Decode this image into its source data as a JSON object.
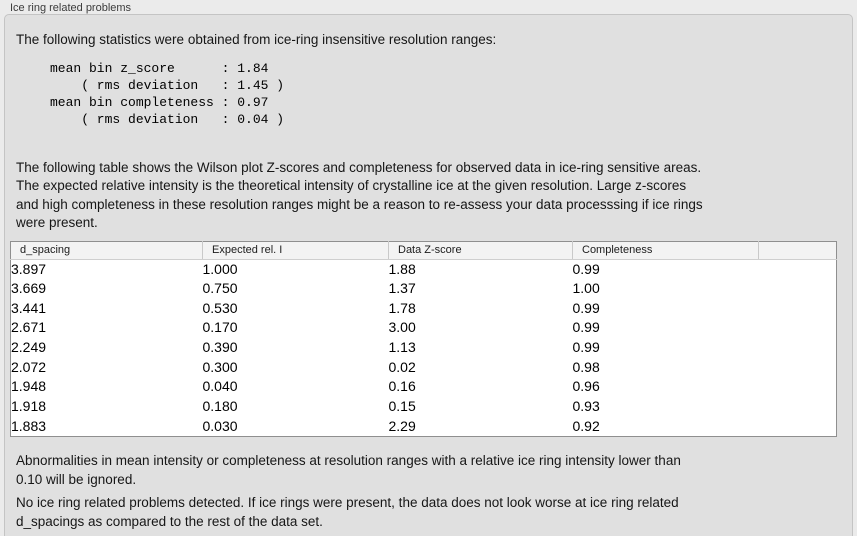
{
  "panel": {
    "title": "Ice ring related problems",
    "intro": "The following statistics were obtained from ice-ring insensitive resolution ranges:",
    "stats_block": "mean bin z_score      : 1.84\n    ( rms deviation   : 1.45 )\nmean bin completeness : 0.97\n    ( rms deviation   : 0.04 )",
    "description_lines": [
      "The following table shows the Wilson plot Z-scores and completeness for observed data in ice-ring sensitive areas.",
      "The expected relative intensity is the theoretical intensity of crystalline ice at the given resolution. Large z-scores",
      "and high completeness in these resolution ranges might be a reason to re-assess your data processsing if ice rings",
      "were present."
    ],
    "note_lines": [
      "Abnormalities in mean intensity or completeness at resolution ranges with a relative ice ring intensity lower than",
      "0.10 will be ignored."
    ],
    "conclusion_lines": [
      "No ice ring related problems detected. If ice rings were present, the data does not look worse at ice ring related",
      "d_spacings as compared to the rest of the data set."
    ]
  },
  "table": {
    "headers": [
      "d_spacing",
      "Expected rel. I",
      "Data Z-score",
      "Completeness",
      ""
    ],
    "rows": [
      [
        "3.897",
        "1.000",
        "1.88",
        "0.99"
      ],
      [
        "3.669",
        "0.750",
        "1.37",
        "1.00"
      ],
      [
        "3.441",
        "0.530",
        "1.78",
        "0.99"
      ],
      [
        "2.671",
        "0.170",
        "3.00",
        "0.99"
      ],
      [
        "2.249",
        "0.390",
        "1.13",
        "0.99"
      ],
      [
        "2.072",
        "0.300",
        "0.02",
        "0.98"
      ],
      [
        "1.948",
        "0.040",
        "0.16",
        "0.96"
      ],
      [
        "1.918",
        "0.180",
        "0.15",
        "0.93"
      ],
      [
        "1.883",
        "0.030",
        "2.29",
        "0.92"
      ]
    ]
  },
  "colors": {
    "page_background": "#ebebeb",
    "panel_background": "#e0e0e0",
    "panel_border": "#c4c4c4",
    "table_border": "#8f8f8f",
    "table_header_background": "#f3f3f3",
    "text": "#161616"
  }
}
